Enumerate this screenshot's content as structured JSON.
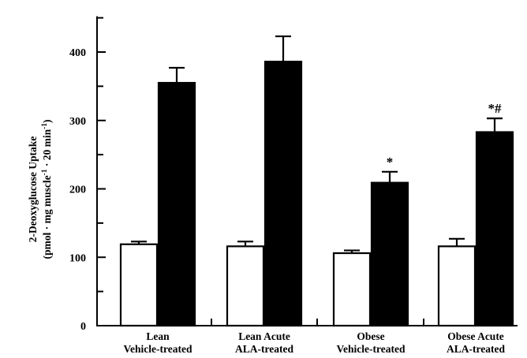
{
  "chart_data": {
    "type": "bar",
    "title": "",
    "ylabel_line1": "2-Deoxyglucose Uptake",
    "ylabel_line2_main": "(pmol · mg muscle",
    "ylabel_line2_sup1": "-1",
    "ylabel_line2_mid": " · 20 min",
    "ylabel_line2_sup2": "-1",
    "ylabel_line2_end": ")",
    "ylim": [
      0,
      450
    ],
    "yticks": [
      0,
      100,
      200,
      300,
      400
    ],
    "legend": "none",
    "categories": [
      {
        "line1": "Lean",
        "line2": "Vehicle-treated"
      },
      {
        "line1": "Lean Acute",
        "line2": "ALA-treated"
      },
      {
        "line1": "Obese",
        "line2": "Vehicle-treated"
      },
      {
        "line1": "Obese Acute",
        "line2": "ALA-treated"
      }
    ],
    "series": [
      {
        "fill": "#ffffff",
        "values": [
          119,
          116,
          106,
          116
        ],
        "errors": [
          4,
          7,
          4,
          11
        ]
      },
      {
        "fill": "#000000",
        "values": [
          355,
          386,
          209,
          283
        ],
        "errors": [
          22,
          37,
          16,
          20
        ]
      }
    ],
    "annotations": [
      {
        "category_index": 2,
        "series_index": 1,
        "text": "*"
      },
      {
        "category_index": 3,
        "series_index": 1,
        "text": "*#"
      }
    ]
  }
}
